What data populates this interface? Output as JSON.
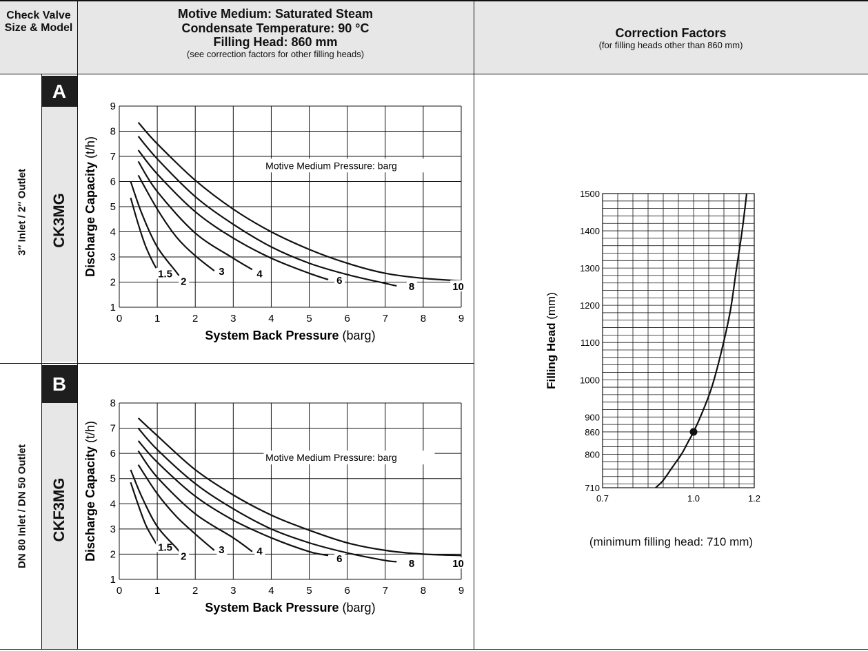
{
  "header": {
    "col1": "Check Valve Size & Model",
    "col2_lines": [
      "Motive Medium: Saturated Steam",
      "Condensate Temperature: 90 °C",
      "Filling Head: 860 mm"
    ],
    "col2_sub": "(see correction factors for other filling heads)",
    "col3_title": "Correction Factors",
    "col3_sub": "(for filling heads other than 860 mm)"
  },
  "rows": [
    {
      "letter": "A",
      "model": "CK3MG",
      "size": "3″ Inlet / 2″ Outlet"
    },
    {
      "letter": "B",
      "model": "CKF3MG",
      "size": "DN 80 Inlet / DN 50 Outlet"
    }
  ],
  "correction_note": "(minimum filling head: 710 mm)",
  "colors": {
    "line": "#111111",
    "header_bg": "#e7e7e7",
    "letter_bg": "#1e1e1e"
  },
  "chart_data": [
    {
      "type": "line",
      "id": "A",
      "xlabel_bold": "System Back Pressure",
      "xlabel_unit": "(barg)",
      "ylabel_bold": "Discharge Capacity",
      "ylabel_unit": "(t/h)",
      "xlim": [
        0,
        9
      ],
      "ylim": [
        1,
        9
      ],
      "xticks": [
        0,
        1,
        2,
        3,
        4,
        5,
        6,
        7,
        8,
        9
      ],
      "yticks": [
        1,
        2,
        3,
        4,
        5,
        6,
        7,
        8,
        9
      ],
      "grid": true,
      "annotation": "Motive Medium Pressure: barg",
      "series": [
        {
          "name": "1.5",
          "x": [
            0.3,
            0.5,
            0.7,
            0.9,
            1.0
          ],
          "y": [
            5.35,
            4.3,
            3.4,
            2.75,
            2.5
          ],
          "label_at": [
            1.0,
            2.35
          ]
        },
        {
          "name": "2",
          "x": [
            0.3,
            0.6,
            1.0,
            1.5,
            1.6
          ],
          "y": [
            6.0,
            4.7,
            3.4,
            2.4,
            2.2
          ],
          "label_at": [
            1.6,
            2.05
          ]
        },
        {
          "name": "3",
          "x": [
            0.5,
            1.0,
            1.5,
            2.0,
            2.5
          ],
          "y": [
            6.25,
            4.9,
            3.8,
            3.05,
            2.45
          ],
          "label_at": [
            2.6,
            2.45
          ]
        },
        {
          "name": "4",
          "x": [
            0.5,
            1.0,
            2.0,
            3.0,
            3.5
          ],
          "y": [
            6.8,
            5.6,
            3.95,
            2.95,
            2.5
          ],
          "label_at": [
            3.6,
            2.35
          ]
        },
        {
          "name": "6",
          "x": [
            0.5,
            1.0,
            2.0,
            3.0,
            4.0,
            5.0,
            5.5
          ],
          "y": [
            7.25,
            6.3,
            4.8,
            3.75,
            2.95,
            2.35,
            2.1
          ],
          "label_at": [
            5.7,
            2.1
          ]
        },
        {
          "name": "8",
          "x": [
            0.5,
            1.0,
            2.0,
            3.0,
            4.0,
            5.0,
            6.0,
            7.0,
            7.3
          ],
          "y": [
            7.8,
            6.9,
            5.4,
            4.3,
            3.4,
            2.75,
            2.3,
            1.95,
            1.85
          ],
          "label_at": [
            7.6,
            1.85
          ]
        },
        {
          "name": "10",
          "x": [
            0.5,
            1.0,
            2.0,
            3.0,
            4.0,
            5.0,
            6.0,
            7.0,
            8.0,
            9.0
          ],
          "y": [
            8.35,
            7.5,
            6.05,
            4.9,
            4.0,
            3.3,
            2.75,
            2.35,
            2.15,
            2.05
          ],
          "label_at": [
            8.75,
            1.85
          ]
        }
      ]
    },
    {
      "type": "line",
      "id": "B",
      "xlabel_bold": "System Back Pressure",
      "xlabel_unit": "(barg)",
      "ylabel_bold": "Discharge Capacity",
      "ylabel_unit": "(t/h)",
      "xlim": [
        0,
        9
      ],
      "ylim": [
        1,
        8
      ],
      "xticks": [
        0,
        1,
        2,
        3,
        4,
        5,
        6,
        7,
        8,
        9
      ],
      "yticks": [
        1,
        2,
        3,
        4,
        5,
        6,
        7,
        8
      ],
      "grid": true,
      "annotation": "Motive Medium Pressure: barg",
      "series": [
        {
          "name": "1.5",
          "x": [
            0.3,
            0.5,
            0.7,
            0.9,
            1.0
          ],
          "y": [
            4.85,
            3.95,
            3.15,
            2.6,
            2.35
          ],
          "label_at": [
            1.0,
            2.3
          ]
        },
        {
          "name": "2",
          "x": [
            0.3,
            0.6,
            1.0,
            1.5,
            1.6
          ],
          "y": [
            5.35,
            4.25,
            3.1,
            2.25,
            2.05
          ],
          "label_at": [
            1.6,
            1.95
          ]
        },
        {
          "name": "3",
          "x": [
            0.5,
            1.0,
            1.5,
            2.0,
            2.5
          ],
          "y": [
            5.55,
            4.4,
            3.5,
            2.8,
            2.15
          ],
          "label_at": [
            2.6,
            2.2
          ]
        },
        {
          "name": "4",
          "x": [
            0.5,
            1.0,
            2.0,
            3.0,
            3.5
          ],
          "y": [
            6.1,
            5.05,
            3.6,
            2.65,
            2.1
          ],
          "label_at": [
            3.6,
            2.15
          ]
        },
        {
          "name": "6",
          "x": [
            0.5,
            1.0,
            2.0,
            3.0,
            4.0,
            5.0,
            5.5
          ],
          "y": [
            6.5,
            5.65,
            4.3,
            3.35,
            2.65,
            2.1,
            1.95
          ],
          "label_at": [
            5.7,
            1.85
          ]
        },
        {
          "name": "8",
          "x": [
            0.5,
            1.0,
            2.0,
            3.0,
            4.0,
            5.0,
            6.0,
            7.0,
            7.3
          ],
          "y": [
            7.0,
            6.15,
            4.8,
            3.8,
            3.0,
            2.45,
            2.05,
            1.75,
            1.7
          ],
          "label_at": [
            7.6,
            1.65
          ]
        },
        {
          "name": "10",
          "x": [
            0.5,
            1.0,
            2.0,
            3.0,
            4.0,
            5.0,
            6.0,
            7.0,
            8.0,
            9.0
          ],
          "y": [
            7.4,
            6.7,
            5.35,
            4.35,
            3.55,
            2.95,
            2.45,
            2.15,
            2.0,
            1.95
          ],
          "label_at": [
            8.75,
            1.65
          ]
        }
      ]
    },
    {
      "type": "line",
      "id": "correction",
      "ylabel_bold": "Filling Head",
      "ylabel_unit": "(mm)",
      "xlim": [
        0.7,
        1.2
      ],
      "ylim": [
        710,
        1500
      ],
      "xticks": [
        0.7,
        1.0,
        1.2
      ],
      "xtick_labels": [
        "0.7",
        "1.0",
        "1.2"
      ],
      "yticks": [
        710,
        800,
        860,
        900,
        1000,
        1100,
        1200,
        1300,
        1400,
        1500
      ],
      "grid": true,
      "series": [
        {
          "x": [
            0.875,
            0.9,
            0.93,
            0.96,
            0.98,
            1.0,
            1.03,
            1.06,
            1.09,
            1.12,
            1.14,
            1.16,
            1.175
          ],
          "y": [
            710,
            730,
            765,
            800,
            830,
            860,
            915,
            980,
            1070,
            1180,
            1290,
            1400,
            1500
          ]
        }
      ],
      "marker": {
        "x": 1.0,
        "y": 860
      }
    }
  ]
}
